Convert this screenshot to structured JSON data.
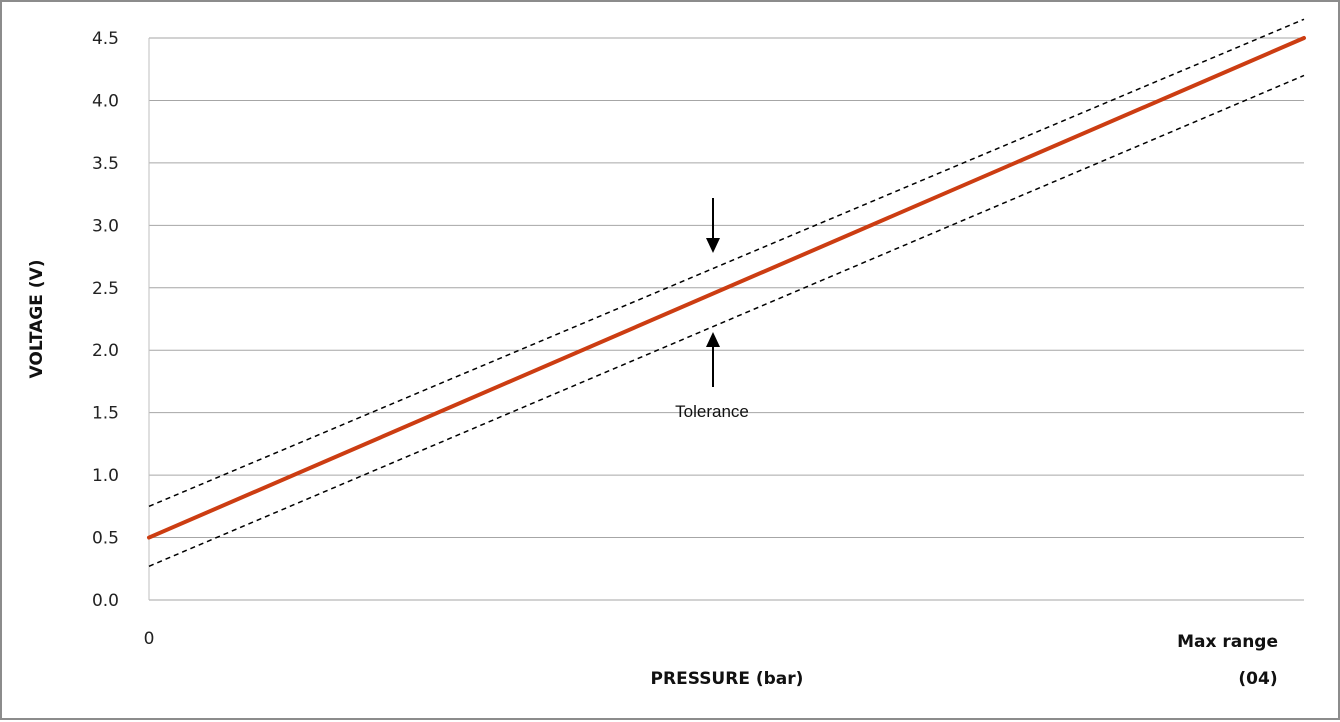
{
  "chart_data": {
    "type": "line",
    "title": "",
    "xlabel": "PRESSURE (bar)",
    "ylabel": "VOLTAGE (V)",
    "x_start_label": "0",
    "x_end_label": "Max range",
    "x_end_note": "(04)",
    "xlim": [
      0,
      1
    ],
    "ylim": [
      0,
      4.5
    ],
    "y_ticks": [
      "0.0",
      "0.5",
      "1.0",
      "1.5",
      "2.0",
      "2.5",
      "3.0",
      "3.5",
      "4.0",
      "4.5"
    ],
    "grid": true,
    "series": [
      {
        "style": "solid",
        "color": "#cc3d12",
        "x": [
          0,
          1
        ],
        "y": [
          0.5,
          4.5
        ]
      },
      {
        "style": "dashed",
        "color": "#000000",
        "x": [
          0,
          1.0
        ],
        "y": [
          0.75,
          4.65
        ]
      },
      {
        "style": "dashed",
        "color": "#000000",
        "x": [
          0,
          1.0
        ],
        "y": [
          0.27,
          4.2
        ]
      }
    ],
    "annotations": [
      {
        "text": "Tolerance"
      }
    ]
  }
}
